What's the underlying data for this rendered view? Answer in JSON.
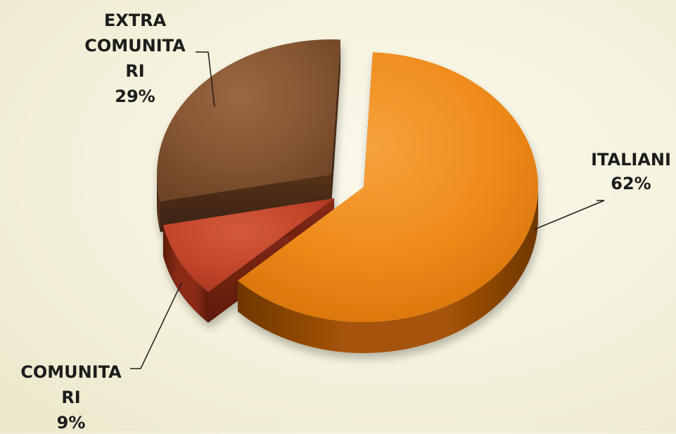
{
  "chart_data": {
    "type": "pie",
    "style": "3d-exploded",
    "slices": [
      {
        "name": "ITALIANI",
        "label_lines": [
          "ITALIANI"
        ],
        "value": 62,
        "value_label": "62%",
        "colors": {
          "top_light": "#f7a23c",
          "top": "#ee8a1a",
          "top_dark": "#d9740c",
          "side": "#a55307",
          "side_dark": "#6e3703"
        }
      },
      {
        "name": "COMUNITARI",
        "label_lines": [
          "COMUNITA",
          "RI"
        ],
        "value": 9,
        "value_label": "9%",
        "colors": {
          "top_light": "#d45a3c",
          "top": "#c2452a",
          "top_dark": "#a9361f",
          "side": "#8c2c16",
          "side_dark": "#5e1c0d"
        }
      },
      {
        "name": "EXTRA COMUNITARI",
        "label_lines": [
          "EXTRA",
          "COMUNITA",
          "RI"
        ],
        "value": 29,
        "value_label": "29%",
        "colors": {
          "top_light": "#9a6840",
          "top": "#855531",
          "top_dark": "#6e4427",
          "side": "#553219",
          "side_dark": "#3a2210"
        }
      }
    ],
    "legend": "none",
    "data_labels": "outside-with-leader-lines"
  }
}
